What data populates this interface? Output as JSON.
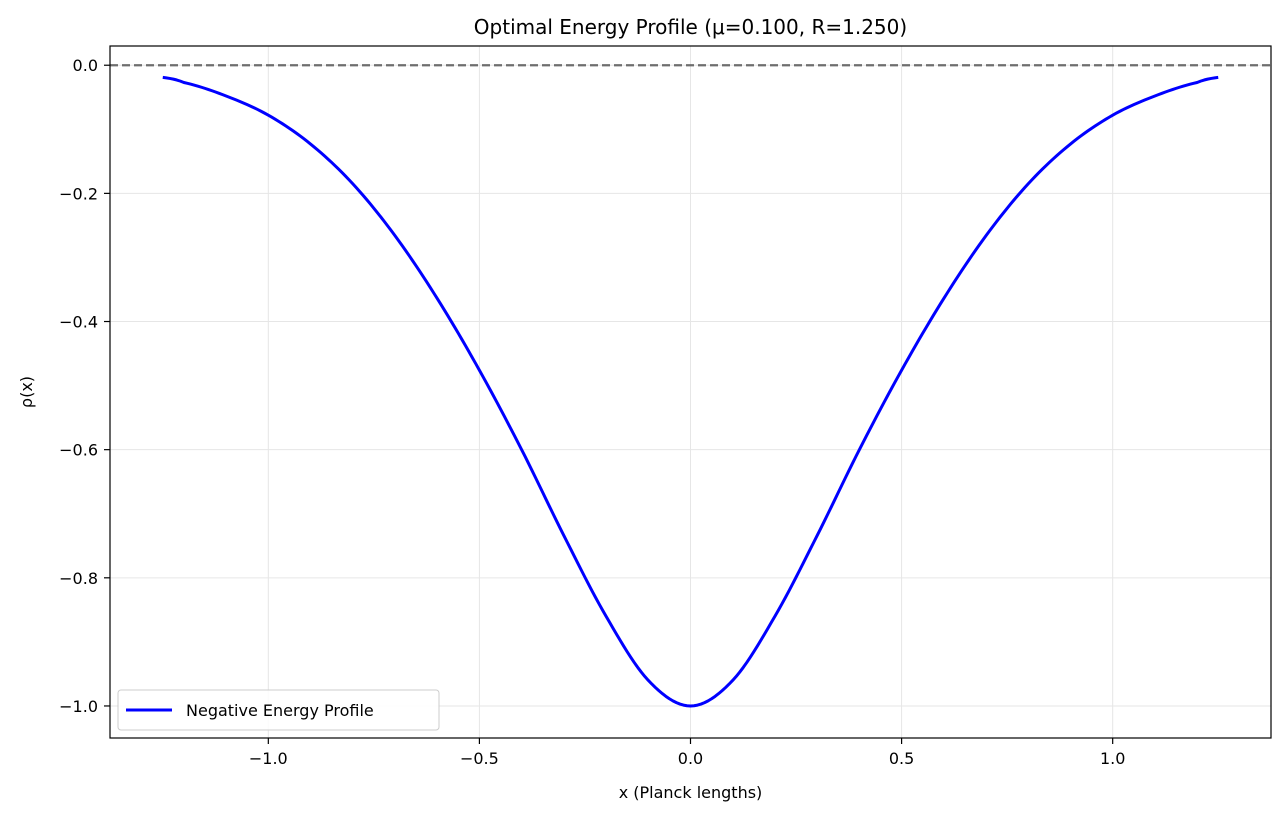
{
  "chart_data": {
    "type": "line",
    "title": "Optimal Energy Profile (μ=0.100, R=1.250)",
    "xlabel": "x (Planck lengths)",
    "ylabel": "ρ(x)",
    "xlim": [
      -1.375,
      1.375
    ],
    "ylim": [
      -1.05,
      0.03
    ],
    "x_ticks": [
      -1.0,
      -0.5,
      0.0,
      0.5,
      1.0
    ],
    "x_tick_labels": [
      "−1.0",
      "−0.5",
      "0.0",
      "0.5",
      "1.0"
    ],
    "y_ticks": [
      0.0,
      -0.2,
      -0.4,
      -0.6,
      -0.8,
      -1.0
    ],
    "y_tick_labels": [
      "0.0",
      "−0.2",
      "−0.4",
      "−0.6",
      "−0.8",
      "−1.0"
    ],
    "grid": true,
    "legend_position": "lower-left",
    "reference_line": {
      "y": 0.0,
      "style": "dashed",
      "color": "#6e6e6e"
    },
    "series": [
      {
        "name": "Negative Energy Profile",
        "color": "#0000ff",
        "x": [
          -1.25,
          -1.2,
          -1.1,
          -1.0,
          -0.9,
          -0.8,
          -0.7,
          -0.6,
          -0.5,
          -0.4,
          -0.3,
          -0.2,
          -0.1,
          0.0,
          0.1,
          0.2,
          0.3,
          0.4,
          0.5,
          0.6,
          0.7,
          0.8,
          0.9,
          1.0,
          1.1,
          1.2,
          1.25
        ],
        "y": [
          -0.019,
          -0.027,
          -0.048,
          -0.078,
          -0.123,
          -0.185,
          -0.266,
          -0.364,
          -0.476,
          -0.6,
          -0.734,
          -0.86,
          -0.96,
          -1.0,
          -0.96,
          -0.86,
          -0.734,
          -0.6,
          -0.476,
          -0.364,
          -0.266,
          -0.185,
          -0.123,
          -0.078,
          -0.048,
          -0.027,
          -0.019
        ]
      }
    ]
  }
}
